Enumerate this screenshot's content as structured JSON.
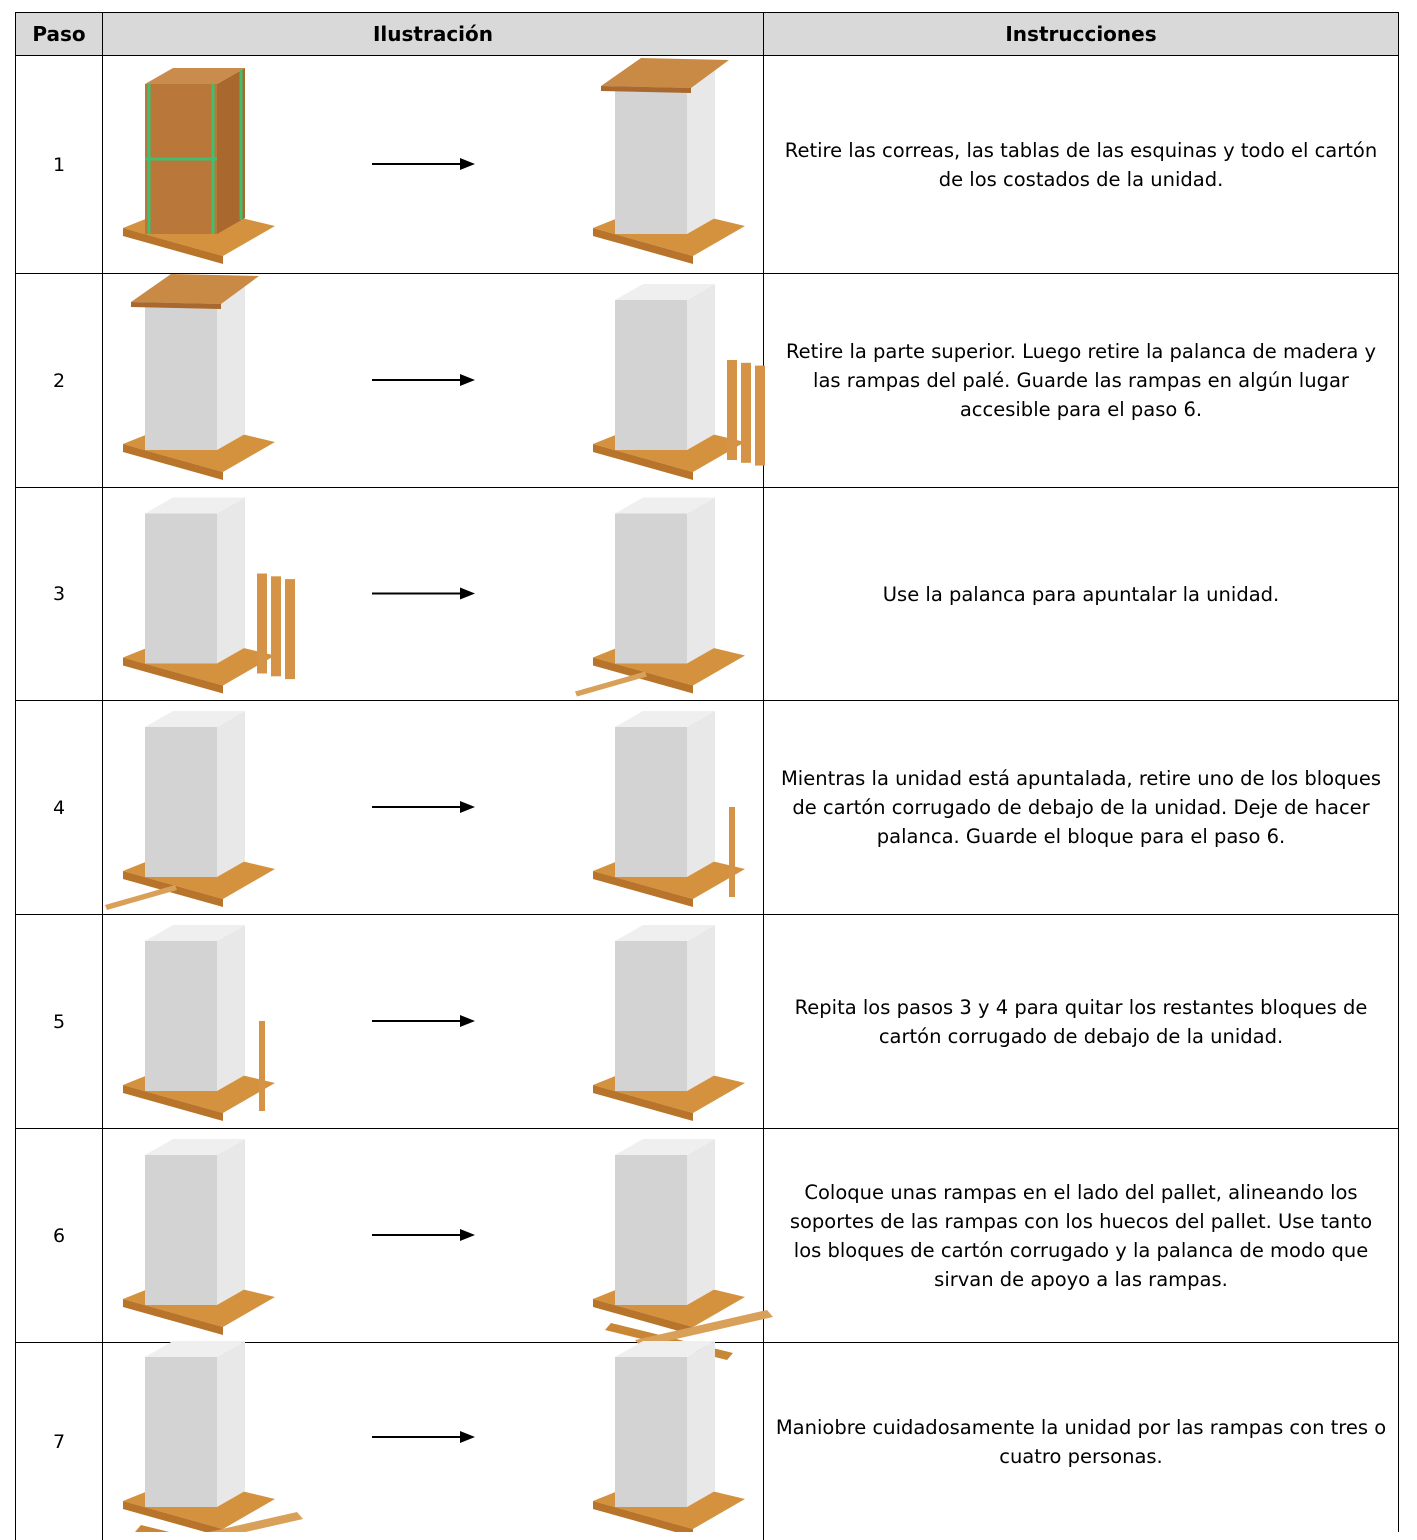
{
  "table": {
    "headers": [
      "Paso",
      "Ilustración",
      "Instrucciones"
    ],
    "rows": [
      {
        "step": "1",
        "instructions": "Retire las correas, las tablas de las esquinas y todo el cartón de los costados de la unidad."
      },
      {
        "step": "2",
        "instructions": "Retire la parte superior.  Luego retire la palanca de madera y las rampas del palé. Guarde las rampas en algún lugar accesible para el paso 6."
      },
      {
        "step": "3",
        "instructions": "Use la palanca para apuntalar la unidad."
      },
      {
        "step": "4",
        "instructions": "Mientras la unidad está apuntalada, retire uno de los bloques de cartón corrugado de debajo de la unidad. Deje de hacer palanca.  Guarde el bloque para el paso 6."
      },
      {
        "step": "5",
        "instructions": "Repita los pasos 3 y 4 para quitar los restantes bloques de cartón corrugado de debajo de la unidad."
      },
      {
        "step": "6",
        "instructions": "Coloque unas rampas en el lado del pallet, alineando los soportes de las rampas con los huecos del pallet.  Use tanto los bloques de cartón corrugado y la palanca de modo que sirvan de apoyo a las rampas."
      },
      {
        "step": "7",
        "instructions": "Maniobre cuidadosamente la unidad por las rampas con tres o cuatro personas."
      }
    ]
  }
}
